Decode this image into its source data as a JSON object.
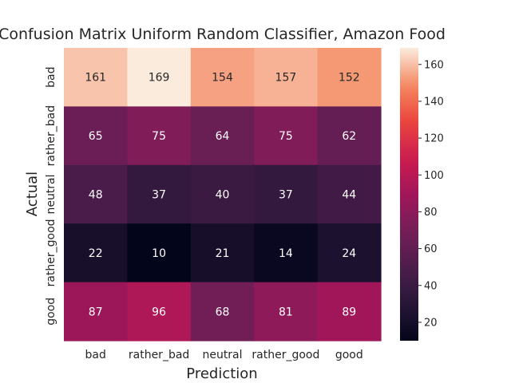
{
  "chart_data": {
    "type": "heatmap",
    "title": "Confusion Matrix Uniform Random Classifier, Amazon Food",
    "xlabel": "Prediction",
    "ylabel": "Actual",
    "x_categories": [
      "bad",
      "rather_bad",
      "neutral",
      "rather_good",
      "good"
    ],
    "y_categories": [
      "bad",
      "rather_bad",
      "neutral",
      "rather_good",
      "good"
    ],
    "values": [
      [
        161,
        169,
        154,
        157,
        152
      ],
      [
        65,
        75,
        64,
        75,
        62
      ],
      [
        48,
        37,
        40,
        37,
        44
      ],
      [
        22,
        10,
        21,
        14,
        24
      ],
      [
        87,
        96,
        68,
        81,
        89
      ]
    ],
    "colorbar": {
      "range": [
        10,
        169
      ],
      "ticks": [
        20,
        40,
        60,
        80,
        100,
        120,
        140,
        160
      ],
      "colormap": "rocket"
    }
  }
}
